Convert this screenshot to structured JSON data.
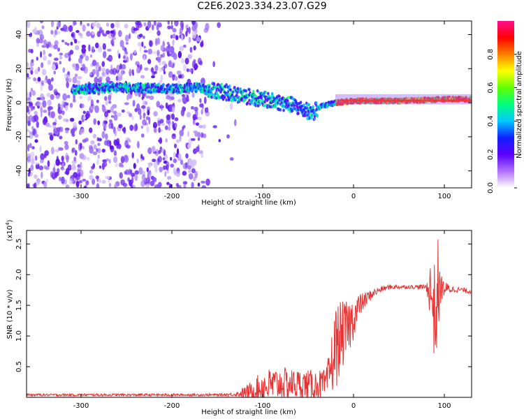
{
  "title": "C2E6.2023.334.23.07.G29",
  "colors": {
    "snr_line": "#e63232",
    "axis": "#000000",
    "ridge_red": "#ff3030"
  },
  "colorbar": {
    "label": "Normalized spectral amplitude",
    "ticks": [
      "0.0",
      "0.2",
      "0.4",
      "0.6",
      "0.8"
    ],
    "tick_values": [
      0.0,
      0.2,
      0.4,
      0.6,
      0.8
    ],
    "range": [
      0,
      1
    ],
    "stops": [
      "#ffffff",
      "#b070ff",
      "#5a00ff",
      "#1020ff",
      "#00c8ff",
      "#00ff80",
      "#60ff00",
      "#ffff00",
      "#ff8000",
      "#ff0000",
      "#ff1090"
    ]
  },
  "chart_data": [
    {
      "type": "heatmap",
      "title": "C2E6.2023.334.23.07.G29",
      "xlabel": "Height of straight line (km)",
      "ylabel": "Frequency (Hz)",
      "xlim": [
        -360,
        130
      ],
      "ylim": [
        -50,
        48
      ],
      "x_ticks": [
        -300,
        -200,
        -100,
        0,
        100
      ],
      "x_tick_labels": [
        "-300",
        "-200",
        "-100",
        "0",
        "100"
      ],
      "y_ticks": [
        -40,
        -20,
        0,
        20,
        40
      ],
      "y_tick_labels": [
        "-40",
        "-20",
        "0",
        "20",
        "40"
      ],
      "colorscale_label": "Normalized spectral amplitude",
      "ridge": {
        "x": [
          -300,
          -250,
          -200,
          -170,
          -150,
          -120,
          -90,
          -70,
          -55,
          -45,
          -35,
          -20,
          0,
          50,
          100,
          130
        ],
        "y": [
          8,
          9,
          8,
          9,
          7,
          4,
          1,
          -1,
          -4,
          -6,
          -2,
          0,
          1,
          1,
          2,
          2
        ]
      }
    },
    {
      "type": "line",
      "xlabel": "Height of straight line (km)",
      "ylabel": "SNR (10 * v/v)",
      "y_multiplier": "(x10",
      "y_multiplier_exp": "4",
      "y_multiplier_close": ")",
      "xlim": [
        -360,
        130
      ],
      "ylim": [
        0,
        2.72
      ],
      "x_ticks": [
        -300,
        -200,
        -100,
        0,
        100
      ],
      "x_tick_labels": [
        "-300",
        "-200",
        "-100",
        "0",
        "100"
      ],
      "y_ticks": [
        0.5,
        1.0,
        1.5,
        2.0,
        2.5
      ],
      "y_tick_labels": [
        "0.5",
        "1.0",
        "1.5",
        "2.0",
        "2.5"
      ],
      "series": [
        {
          "x": [
            -360,
            -300,
            -250,
            -200,
            -150,
            -130,
            -110,
            -100,
            -90,
            -80,
            -70,
            -60,
            -50,
            -40,
            -30,
            -25,
            -20,
            -15,
            -10,
            -5,
            0,
            5,
            10,
            20,
            30,
            40,
            60,
            80,
            85,
            90,
            93,
            95,
            100,
            110,
            120,
            130
          ],
          "y": [
            0.04,
            0.04,
            0.04,
            0.04,
            0.04,
            0.05,
            0.1,
            0.17,
            0.2,
            0.22,
            0.22,
            0.21,
            0.2,
            0.2,
            0.2,
            0.5,
            0.8,
            0.98,
            1.05,
            1.15,
            1.3,
            1.45,
            1.55,
            1.68,
            1.76,
            1.8,
            1.8,
            1.8,
            1.75,
            1.3,
            1.7,
            1.78,
            1.77,
            1.76,
            1.75,
            1.72
          ],
          "noise": [
            0.02,
            0.02,
            0.02,
            0.02,
            0.02,
            0.03,
            0.18,
            0.3,
            0.28,
            0.28,
            0.25,
            0.25,
            0.25,
            0.25,
            0.25,
            0.45,
            0.7,
            0.6,
            0.5,
            0.45,
            0.35,
            0.25,
            0.15,
            0.08,
            0.05,
            0.04,
            0.03,
            0.04,
            0.5,
            0.9,
            0.9,
            0.3,
            0.12,
            0.05,
            0.04,
            0.04
          ]
        }
      ]
    }
  ]
}
